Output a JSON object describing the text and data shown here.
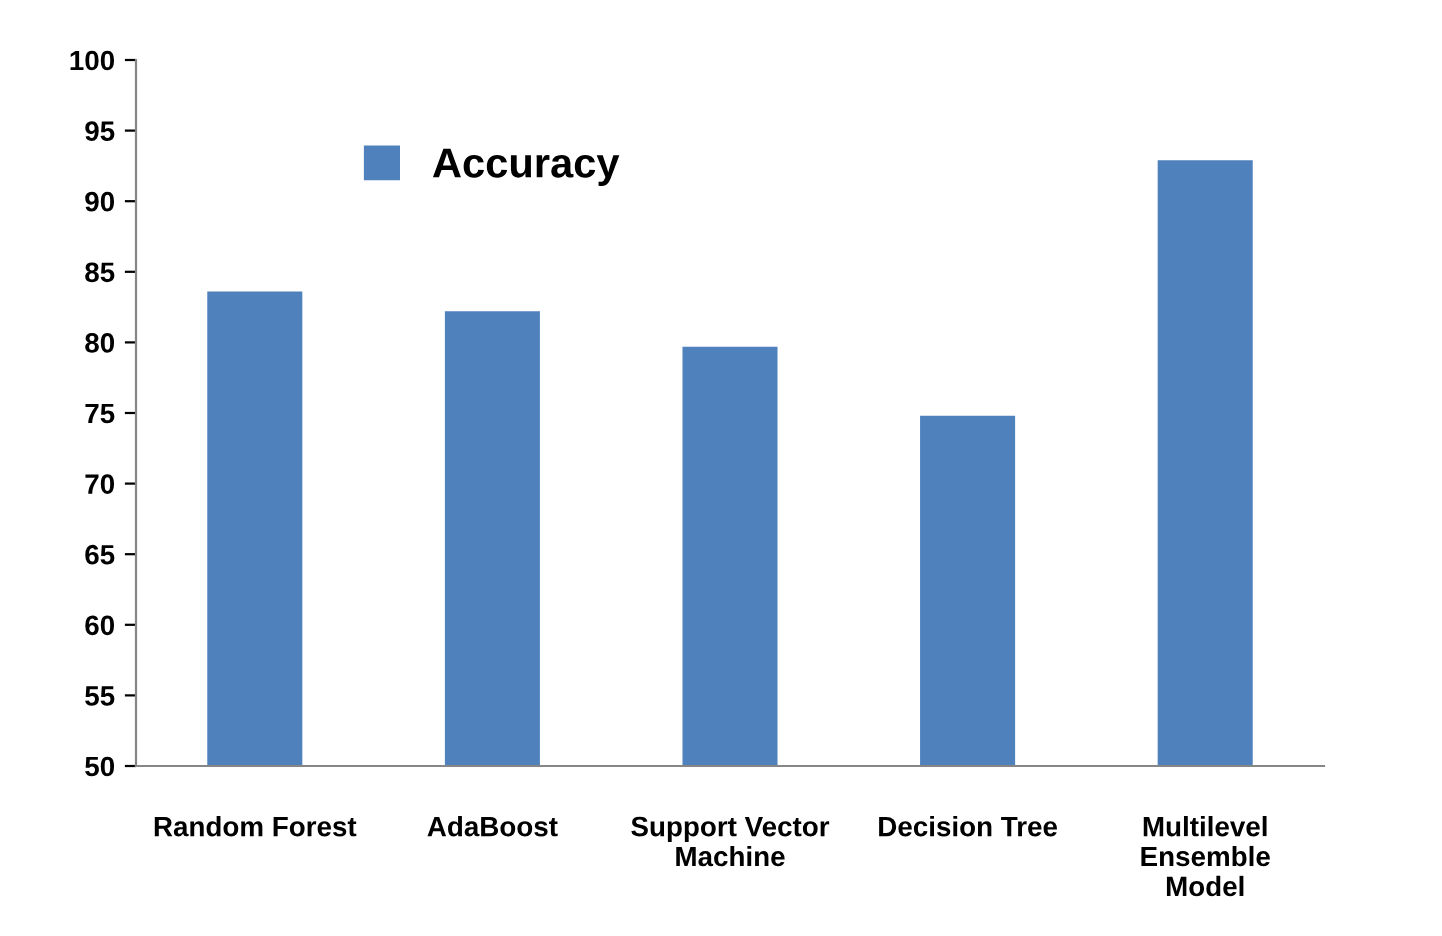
{
  "chart_data": {
    "type": "bar",
    "categories": [
      "Random Forest",
      "AdaBoost",
      "Support Vector\nMachine",
      "Decision Tree",
      "Multilevel\nEnsemble\nModel"
    ],
    "series": [
      {
        "name": "Accuracy",
        "color": "#4f81bd",
        "values": [
          83.6,
          82.2,
          79.7,
          74.8,
          92.9
        ]
      }
    ],
    "ylim": [
      50,
      100
    ],
    "yticks": [
      50,
      55,
      60,
      65,
      70,
      75,
      80,
      85,
      90,
      95,
      100
    ],
    "grid": false,
    "legend": "top"
  }
}
